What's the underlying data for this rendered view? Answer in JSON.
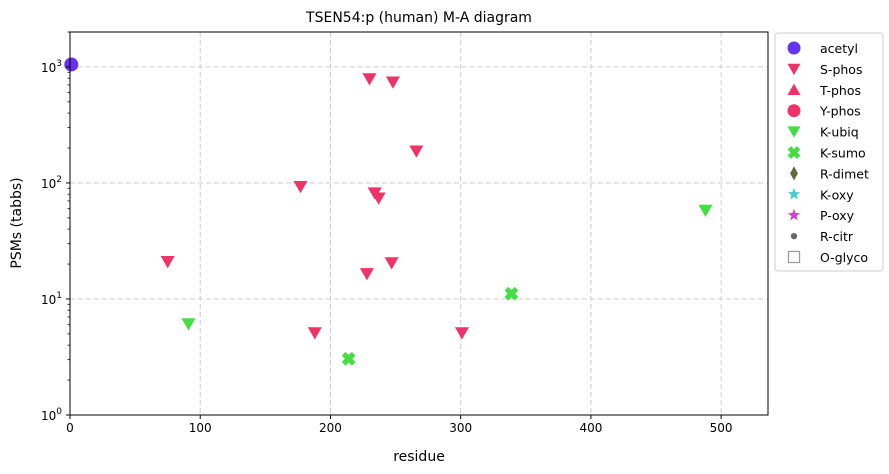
{
  "chart_data": {
    "type": "scatter",
    "title": "TSEN54:p (human) M-A diagram",
    "xlabel": "residue",
    "ylabel": "PSMs (tabbs)",
    "xlim": [
      0,
      536
    ],
    "ylim": [
      1,
      2000
    ],
    "yscale": "log",
    "grid": true,
    "legend_position": "outside-right",
    "x_ticks": [
      0,
      100,
      200,
      300,
      400,
      500
    ],
    "y_ticks": [
      {
        "value": 1,
        "base": "10",
        "exp": "0"
      },
      {
        "value": 10,
        "base": "10",
        "exp": "1"
      },
      {
        "value": 100,
        "base": "10",
        "exp": "2"
      },
      {
        "value": 1000,
        "base": "10",
        "exp": "3"
      }
    ],
    "series": [
      {
        "name": "acetyl",
        "marker": "circle",
        "color": "#6633ee",
        "points": [
          {
            "x": 1,
            "y": 1050
          }
        ]
      },
      {
        "name": "S-phos",
        "marker": "triangle-down",
        "color": "#ee3366",
        "points": [
          {
            "x": 75,
            "y": 21
          },
          {
            "x": 177,
            "y": 93
          },
          {
            "x": 188,
            "y": 5.1
          },
          {
            "x": 228,
            "y": 16.5
          },
          {
            "x": 230,
            "y": 790
          },
          {
            "x": 234,
            "y": 82
          },
          {
            "x": 237,
            "y": 74
          },
          {
            "x": 247,
            "y": 20.5
          },
          {
            "x": 248,
            "y": 740
          },
          {
            "x": 266,
            "y": 188
          },
          {
            "x": 301,
            "y": 5.1
          }
        ]
      },
      {
        "name": "T-phos",
        "marker": "triangle-up",
        "color": "#ee3366",
        "points": []
      },
      {
        "name": "Y-phos",
        "marker": "circle",
        "color": "#ee3366",
        "points": []
      },
      {
        "name": "K-ubiq",
        "marker": "triangle-down",
        "color": "#44dd44",
        "points": [
          {
            "x": 91,
            "y": 6.1
          },
          {
            "x": 488,
            "y": 58
          }
        ]
      },
      {
        "name": "K-sumo",
        "marker": "x",
        "color": "#44dd44",
        "points": [
          {
            "x": 214,
            "y": 3.05
          },
          {
            "x": 339,
            "y": 11.1
          }
        ]
      },
      {
        "name": "R-dimet",
        "marker": "diamond",
        "color": "#666644",
        "points": []
      },
      {
        "name": "K-oxy",
        "marker": "star",
        "color": "#44cccc",
        "points": []
      },
      {
        "name": "P-oxy",
        "marker": "star",
        "color": "#cc44cc",
        "points": []
      },
      {
        "name": "R-citr",
        "marker": "dot",
        "color": "#666666",
        "points": []
      },
      {
        "name": "O-glyco",
        "marker": "square-open",
        "color": "#999999",
        "points": []
      }
    ]
  }
}
